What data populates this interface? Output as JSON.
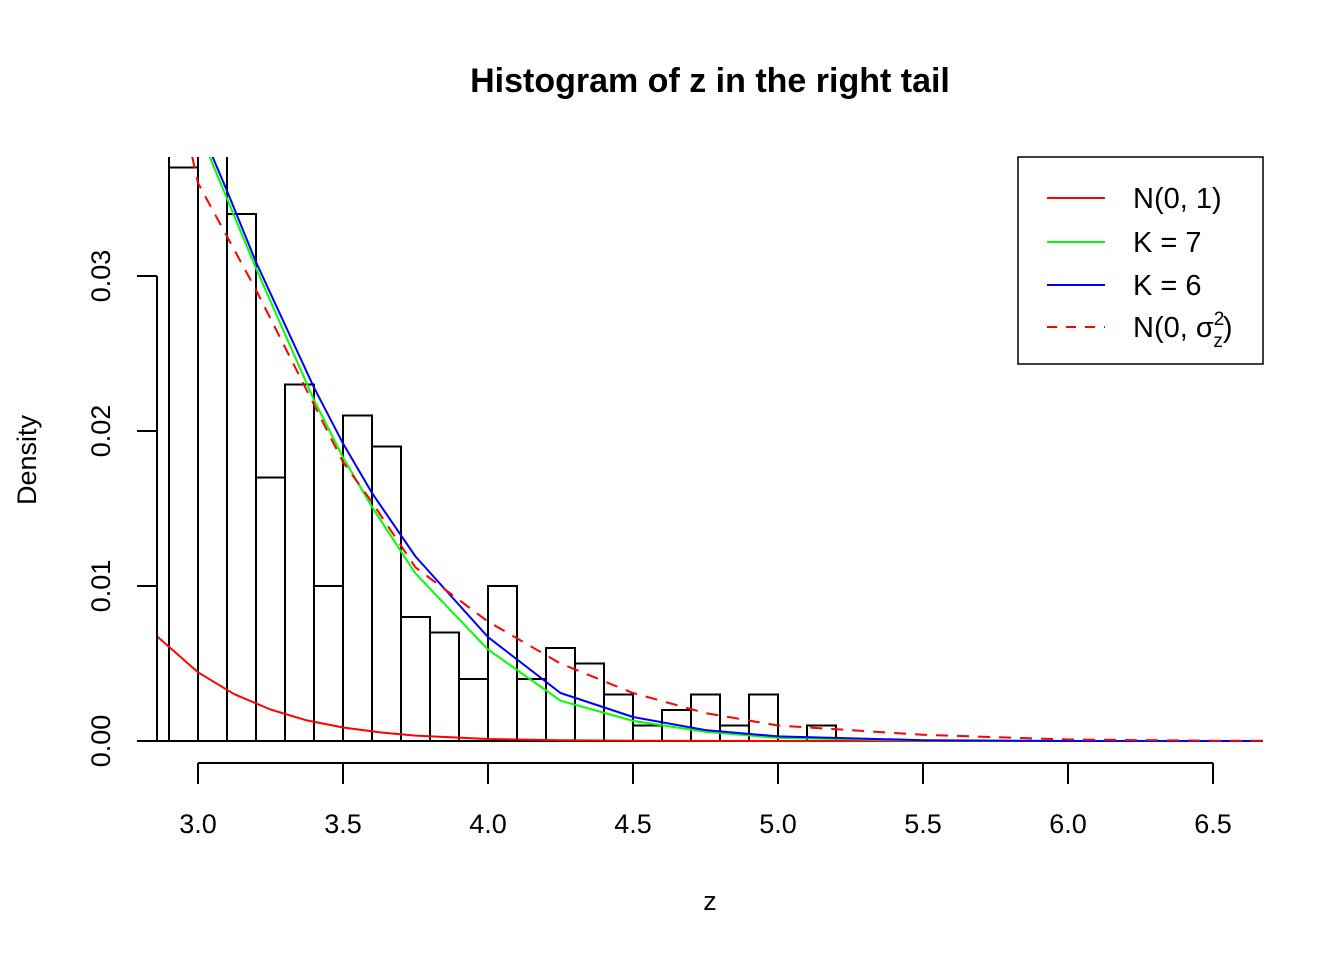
{
  "chart_data": {
    "type": "bar",
    "title": "Histogram of z in the right tail",
    "xlabel": "z",
    "ylabel": "Density",
    "xlim": [
      2.859,
      6.672
    ],
    "ylim": [
      0,
      0.0377
    ],
    "x_ticks": [
      3.0,
      3.5,
      4.0,
      4.5,
      5.0,
      5.5,
      6.0,
      6.5
    ],
    "x_tick_labels": [
      "3.0",
      "3.5",
      "4.0",
      "4.5",
      "5.0",
      "5.5",
      "6.0",
      "6.5"
    ],
    "y_ticks": [
      0,
      0.01,
      0.02,
      0.03
    ],
    "y_tick_labels": [
      "0.00",
      "0.01",
      "0.02",
      "0.03"
    ],
    "grid": false,
    "histogram": {
      "bin_width": 0.1,
      "breaks_start": 2.8,
      "densities": [
        null,
        0.037,
        null,
        0.034,
        0.017,
        0.023,
        0.01,
        0.021,
        0.019,
        0.008,
        0.007,
        0.004,
        0.01,
        0.004,
        0.006,
        0.005,
        0.003,
        0.001,
        0.002,
        0.003,
        0.001,
        0.003,
        0,
        0.001,
        0,
        0,
        0,
        0,
        0,
        0,
        0,
        0,
        0,
        0,
        0,
        0,
        0,
        0,
        0
      ]
    },
    "series": [
      {
        "name": "N(0, 1)",
        "color": "#ff0000",
        "dash": "solid",
        "x": [
          2.86,
          3.0,
          3.125,
          3.25,
          3.375,
          3.5,
          3.625,
          3.75,
          4.0,
          4.25,
          4.5,
          5.0,
          5.5,
          6.672
        ],
        "y": [
          0.00673,
          0.00443,
          0.00302,
          0.00203,
          0.00133,
          0.00087,
          0.00056,
          0.00035,
          0.00013,
          5e-05,
          1.6e-05,
          1.5e-06,
          1e-07,
          0
        ]
      },
      {
        "name": "K = 7",
        "color": "#00ff00",
        "dash": "solid",
        "x": [
          3.04,
          3.1,
          3.2,
          3.4,
          3.5,
          3.6,
          3.75,
          4.0,
          4.25,
          4.5,
          4.75,
          5.0,
          5.5,
          6.0,
          6.672
        ],
        "y": [
          0.0377,
          0.035,
          0.0305,
          0.022,
          0.0183,
          0.0151,
          0.0108,
          0.0059,
          0.0026,
          0.0013,
          0.0006,
          0.0002,
          3e-05,
          0,
          0
        ]
      },
      {
        "name": "K = 6",
        "color": "#0000ff",
        "dash": "solid",
        "x": [
          3.05,
          3.1,
          3.2,
          3.4,
          3.5,
          3.6,
          3.75,
          4.0,
          4.25,
          4.5,
          4.75,
          5.0,
          5.5,
          6.0,
          6.672
        ],
        "y": [
          0.0377,
          0.0355,
          0.0309,
          0.0228,
          0.0192,
          0.016,
          0.0119,
          0.0067,
          0.0031,
          0.00155,
          0.0007,
          0.0003,
          5e-05,
          0,
          0
        ]
      },
      {
        "name": "N(0, σz²)",
        "color": "#ff0000",
        "dash": "dashed",
        "x": [
          2.98,
          3.0,
          3.2,
          3.5,
          3.6,
          3.75,
          4.0,
          4.25,
          4.5,
          4.75,
          5.0,
          5.5,
          6.0,
          6.5,
          6.672
        ],
        "y": [
          0.0377,
          0.036,
          0.0291,
          0.018,
          0.0154,
          0.0112,
          0.0077,
          0.005,
          0.0031,
          0.0018,
          0.001,
          0.0004,
          0.0001,
          2e-05,
          1e-05
        ]
      }
    ],
    "legend": {
      "placement": "top-right",
      "entries": [
        {
          "label": "N(0, 1)",
          "color": "#ff0000",
          "dash": "solid"
        },
        {
          "label": "K = 7",
          "color": "#00ff00",
          "dash": "solid"
        },
        {
          "label": "K = 6",
          "color": "#0000ff",
          "dash": "solid"
        },
        {
          "label_prefix": "N(0, σ",
          "label_sup": "2",
          "label_sub": "z",
          "label_suffix": ")",
          "color": "#ff0000",
          "dash": "dashed"
        }
      ]
    }
  }
}
